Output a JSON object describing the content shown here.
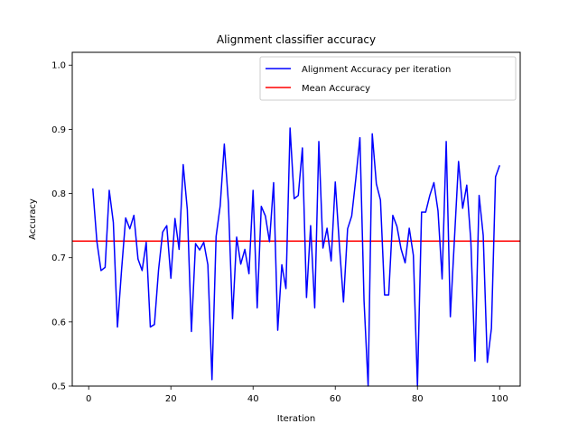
{
  "chart_data": {
    "type": "line",
    "title": "Alignment classifier accuracy",
    "xlabel": "Iteration",
    "ylabel": "Accuracy",
    "xlim": [
      -4,
      105
    ],
    "ylim": [
      0.5,
      1.02
    ],
    "xticks": [
      0,
      20,
      40,
      60,
      80,
      100
    ],
    "yticks": [
      0.5,
      0.6,
      0.7,
      0.8,
      0.9,
      1.0
    ],
    "xtick_labels": [
      "0",
      "20",
      "40",
      "60",
      "80",
      "100"
    ],
    "ytick_labels": [
      "0.5",
      "0.6",
      "0.7",
      "0.8",
      "0.9",
      "1.0"
    ],
    "grid": false,
    "legend_position": "upper right",
    "series": [
      {
        "name": "Alignment Accuracy per iteration",
        "color": "#0000ff",
        "x": [
          1,
          2,
          3,
          4,
          5,
          6,
          7,
          8,
          9,
          10,
          11,
          12,
          13,
          14,
          15,
          16,
          17,
          18,
          19,
          20,
          21,
          22,
          23,
          24,
          25,
          26,
          27,
          28,
          29,
          30,
          31,
          32,
          33,
          34,
          35,
          36,
          37,
          38,
          39,
          40,
          41,
          42,
          43,
          44,
          45,
          46,
          47,
          48,
          49,
          50,
          51,
          52,
          53,
          54,
          55,
          56,
          57,
          58,
          59,
          60,
          61,
          62,
          63,
          64,
          65,
          66,
          67,
          68,
          69,
          70,
          71,
          72,
          73,
          74,
          75,
          76,
          77,
          78,
          79,
          80,
          81,
          82,
          83,
          84,
          85,
          86,
          87,
          88,
          89,
          90,
          91,
          92,
          93,
          94,
          95,
          96,
          97,
          98,
          99,
          100
        ],
        "y": [
          0.808,
          0.725,
          0.68,
          0.685,
          0.805,
          0.755,
          0.592,
          0.681,
          0.762,
          0.745,
          0.766,
          0.698,
          0.68,
          0.724,
          0.592,
          0.596,
          0.681,
          0.74,
          0.75,
          0.668,
          0.761,
          0.713,
          0.845,
          0.775,
          0.585,
          0.722,
          0.712,
          0.724,
          0.689,
          0.51,
          0.733,
          0.781,
          0.877,
          0.785,
          0.605,
          0.732,
          0.69,
          0.713,
          0.675,
          0.805,
          0.622,
          0.78,
          0.765,
          0.725,
          0.817,
          0.587,
          0.689,
          0.652,
          0.902,
          0.792,
          0.797,
          0.871,
          0.638,
          0.75,
          0.622,
          0.881,
          0.715,
          0.746,
          0.695,
          0.818,
          0.72,
          0.631,
          0.745,
          0.765,
          0.823,
          0.887,
          0.633,
          0.495,
          0.893,
          0.815,
          0.79,
          0.642,
          0.642,
          0.766,
          0.749,
          0.714,
          0.692,
          0.746,
          0.704,
          0.495,
          0.771,
          0.771,
          0.797,
          0.817,
          0.773,
          0.667,
          0.881,
          0.608,
          0.729,
          0.85,
          0.777,
          0.813,
          0.725,
          0.539,
          0.797,
          0.735,
          0.537,
          0.59,
          0.826,
          0.844
        ]
      }
    ],
    "hlines": [
      {
        "name": "Mean Accuracy",
        "color": "#ff0000",
        "y": 0.726
      }
    ]
  }
}
